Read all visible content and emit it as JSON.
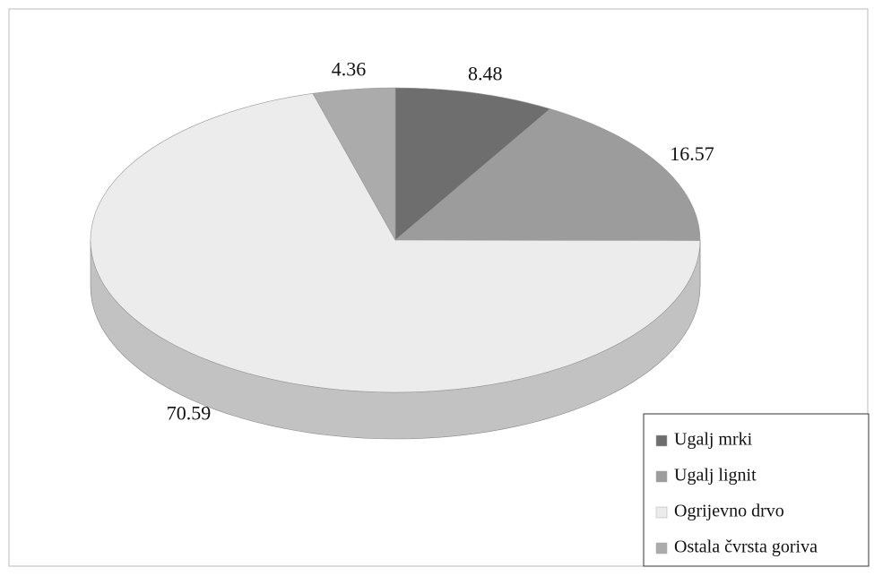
{
  "chart_data": {
    "type": "pie3d",
    "categories": [
      "Ugalj mrki",
      "Ugalj lignit",
      "Ogrijevno drvo",
      "Ostala čvrsta goriva"
    ],
    "values": [
      8.48,
      16.57,
      70.59,
      4.36
    ],
    "colors": [
      "#6e6e6e",
      "#9c9c9c",
      "#ececec",
      "#ababab"
    ],
    "legend": "bottom-right"
  }
}
